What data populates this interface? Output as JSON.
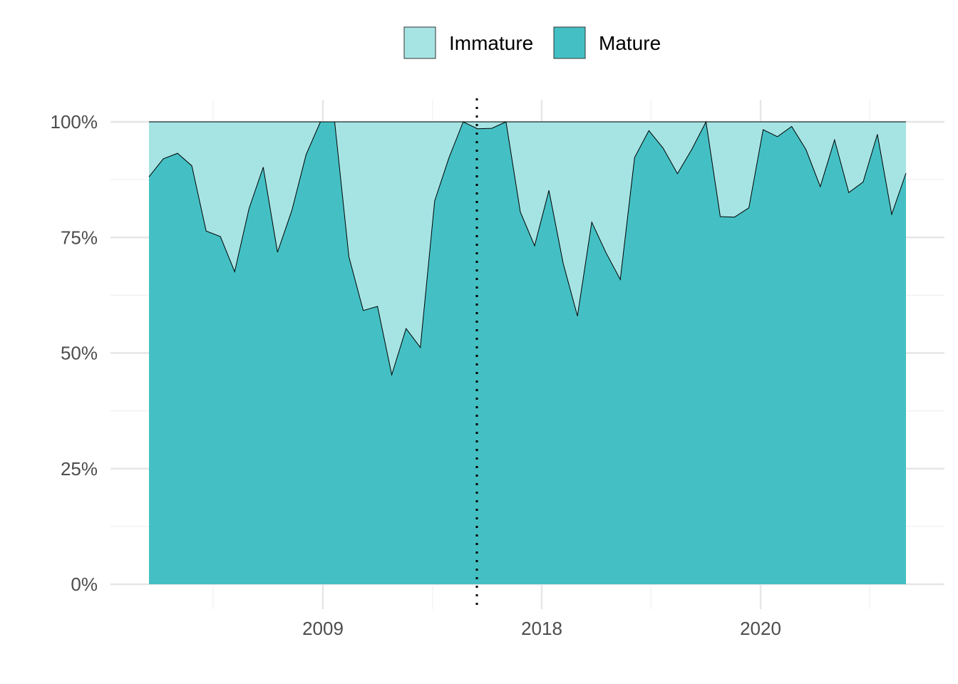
{
  "chart_data": {
    "type": "area",
    "stacked": "percent",
    "legend": {
      "position": "top",
      "entries": [
        {
          "label": "Immature",
          "color": "#a6e4e4"
        },
        {
          "label": "Mature",
          "color": "#44c0c4"
        }
      ]
    },
    "x_ticks": [
      "2009",
      "2018",
      "2020"
    ],
    "y_ticks": [
      "0%",
      "25%",
      "50%",
      "75%",
      "100%"
    ],
    "ylim": [
      0,
      100
    ],
    "grid": true,
    "vertical_reference_line": {
      "style": "dotted"
    },
    "series": [
      {
        "name": "Mature",
        "values": [
          88.1,
          92.0,
          93.2,
          90.5,
          76.4,
          75.2,
          67.6,
          81.2,
          90.2,
          71.8,
          80.8,
          92.9,
          100,
          100,
          70.8,
          59.2,
          60.1,
          45.3,
          55.3,
          51.2,
          82.9,
          92.2,
          100,
          98.5,
          98.6,
          100,
          80.5,
          73.2,
          85.2,
          69.4,
          58.0,
          78.3,
          71.7,
          65.9,
          92.3,
          98.1,
          94.3,
          88.8,
          94.0,
          100,
          79.5,
          79.4,
          81.4,
          98.3,
          96.8,
          99.0,
          94.0,
          86.0,
          96.1,
          84.7,
          87.0,
          97.3,
          80.0,
          88.9
        ]
      },
      {
        "name": "Immature",
        "values": [
          11.9,
          8.0,
          6.8,
          9.5,
          23.6,
          24.8,
          32.4,
          18.8,
          9.8,
          28.2,
          19.2,
          7.1,
          0,
          0,
          29.2,
          40.8,
          39.9,
          54.7,
          44.7,
          48.8,
          17.1,
          7.8,
          0,
          1.5,
          1.4,
          0,
          19.5,
          26.8,
          14.8,
          30.6,
          42.0,
          21.7,
          28.3,
          34.1,
          7.7,
          1.9,
          5.7,
          11.2,
          6.0,
          0,
          20.5,
          20.6,
          18.6,
          1.7,
          3.2,
          1.0,
          6.0,
          14.0,
          3.9,
          15.3,
          13.0,
          2.7,
          20.0,
          11.1
        ]
      }
    ]
  }
}
